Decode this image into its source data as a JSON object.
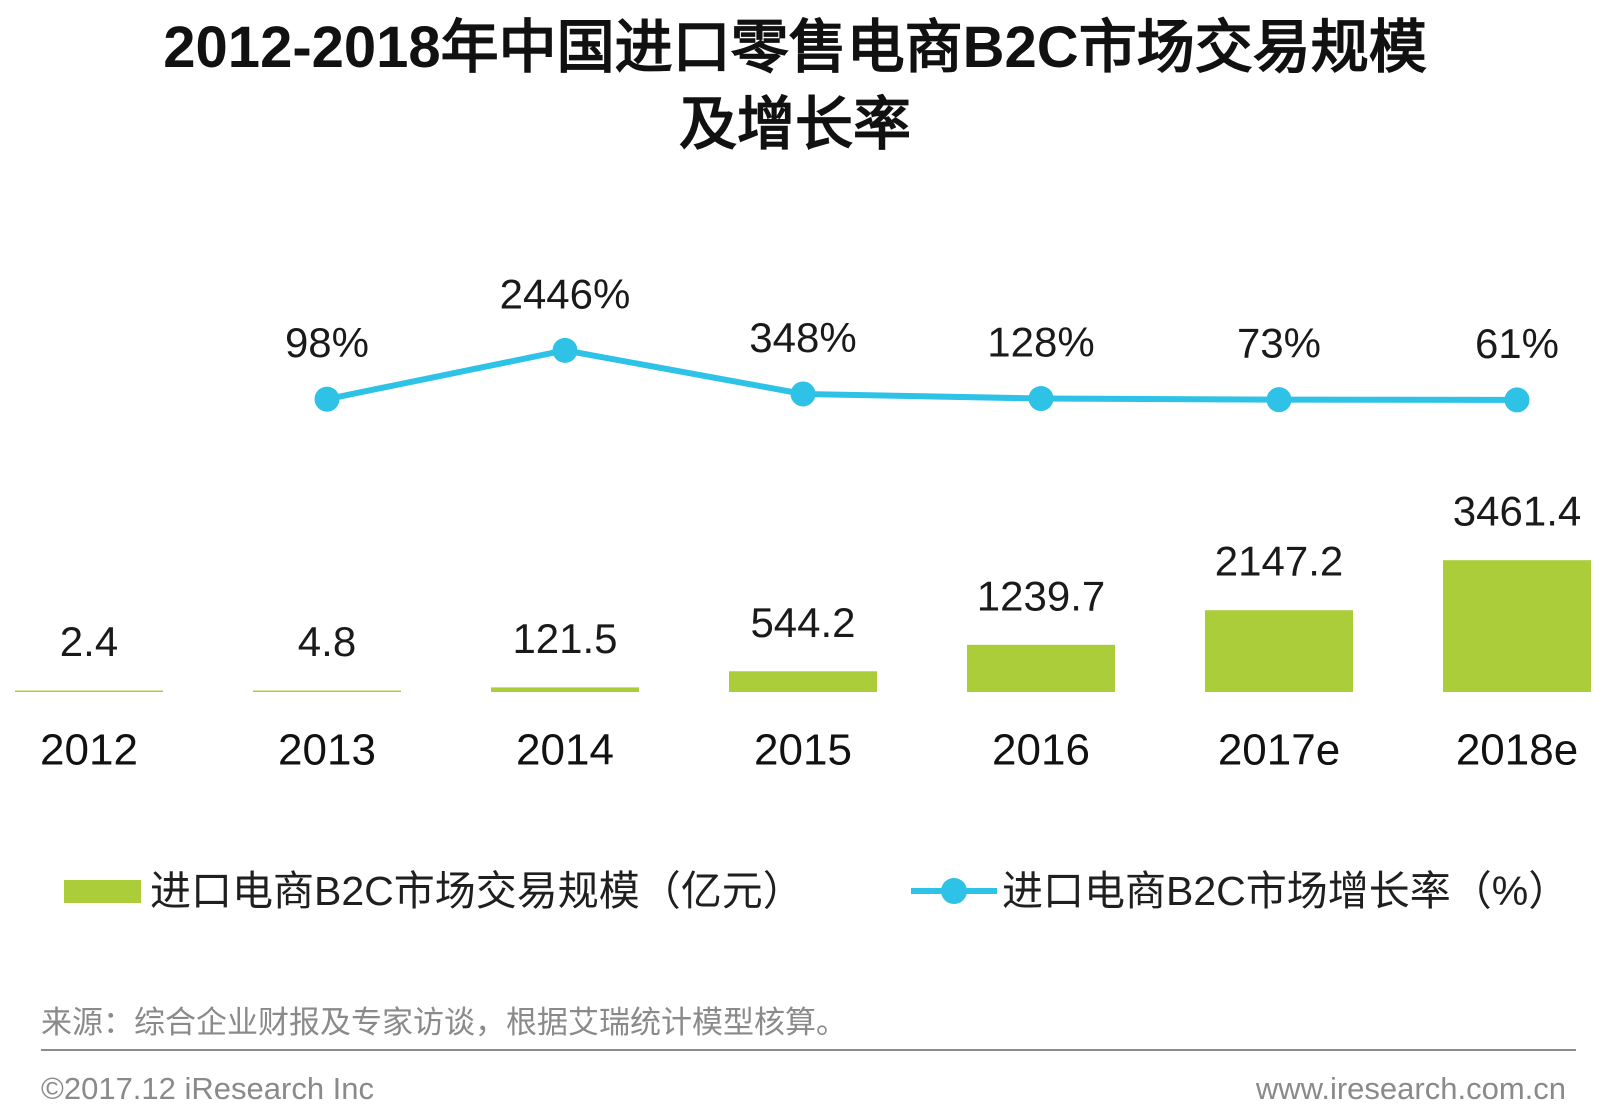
{
  "chart_data": {
    "type": "bar",
    "title": "2012-2018年中国进口零售电商B2C市场交易规模\n及增长率",
    "categories": [
      "2012",
      "2013",
      "2014",
      "2015",
      "2016",
      "2017e",
      "2018e"
    ],
    "series": [
      {
        "name": "进口电商B2C市场交易规模（亿元）",
        "type": "bar",
        "axis": "primary",
        "color": "#abcd3a",
        "values": [
          2.4,
          4.8,
          121.5,
          544.2,
          1239.7,
          2147.2,
          3461.4
        ]
      },
      {
        "name": "进口电商B2C市场增长率（%）",
        "type": "line",
        "axis": "secondary",
        "color": "#2ec2e6",
        "values": [
          null,
          98,
          2446,
          348,
          128,
          73,
          61
        ],
        "value_suffix": "%"
      }
    ],
    "ylim": [
      0,
      12000
    ],
    "y2lim": [
      -14000,
      8000
    ],
    "data_labels": true,
    "grid": false,
    "legend": "bottom"
  },
  "source": "来源：综合企业财报及专家访谈，根据艾瑞统计模型核算。",
  "footer": {
    "copyright": "©2017.12 iResearch Inc",
    "website": "www.iresearch.com.cn"
  }
}
